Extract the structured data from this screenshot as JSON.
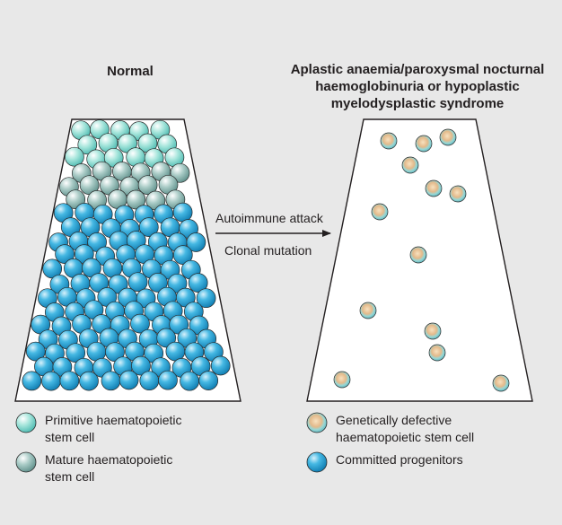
{
  "titles": {
    "normal": "Normal",
    "disease": "Aplastic anaemia/paroxysmal nocturnal haemoglobinuria or hypoplastic myelodysplastic syndrome"
  },
  "arrow": {
    "top_label": "Autoimmune attack",
    "bottom_label": "Clonal mutation"
  },
  "legend": {
    "primitive": "Primitive haematopoietic stem cell",
    "mature": "Mature haematopoietic stem cell",
    "defective": "Genetically defective haematopoietic stem cell",
    "committed": "Committed progenitors"
  },
  "colors": {
    "background": "#e8e8e8",
    "primitive_cell": "#7fd6cc",
    "mature_cell": "#8fbab4",
    "committed_cell": "#2aa5d8",
    "defective_core": "#e3b98a",
    "defective_rim": "#5cc6cf",
    "outline": "#231f20"
  }
}
